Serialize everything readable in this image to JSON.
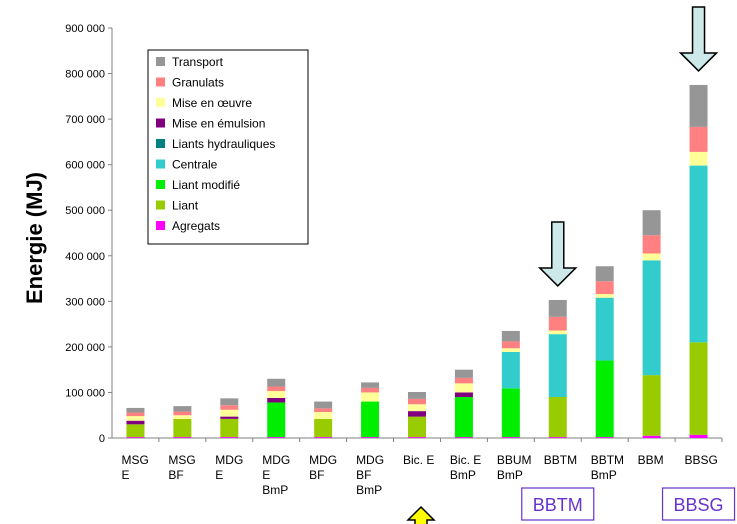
{
  "chart_data": {
    "type": "bar",
    "stacked": true,
    "ylabel": "Energie (MJ)",
    "ylim": [
      0,
      900000
    ],
    "yticks": [
      0,
      100000,
      200000,
      300000,
      400000,
      500000,
      600000,
      700000,
      800000,
      900000
    ],
    "ytick_labels": [
      "0",
      "100 000",
      "200 000",
      "300 000",
      "400 000",
      "500 000",
      "600 000",
      "700 000",
      "800 000",
      "900 000"
    ],
    "categories": [
      [
        "MSG",
        "E"
      ],
      [
        "MSG",
        "BF"
      ],
      [
        "MDG",
        "E"
      ],
      [
        "MDG",
        "E",
        "BmP"
      ],
      [
        "MDG",
        "BF"
      ],
      [
        "MDG",
        "BF",
        "BmP"
      ],
      [
        "Bic. E"
      ],
      [
        "Bic. E",
        "BmP"
      ],
      [
        "BBUM",
        "BmP"
      ],
      [
        "BBTM"
      ],
      [
        "BBTM",
        "BmP"
      ],
      [
        "BBM"
      ],
      [
        "BBSG"
      ]
    ],
    "series": [
      {
        "name": "Agregats",
        "color": "#ff00ff",
        "values": [
          2000,
          2000,
          2000,
          2000,
          2000,
          2000,
          2000,
          2000,
          2000,
          2000,
          2000,
          5000,
          7000
        ]
      },
      {
        "name": "Liant",
        "color": "#99cc00",
        "values": [
          28000,
          40000,
          40000,
          0,
          40000,
          0,
          45000,
          0,
          0,
          88000,
          0,
          133000,
          203000
        ]
      },
      {
        "name": "Liant modifié",
        "color": "#00ee00",
        "values": [
          0,
          0,
          0,
          76000,
          0,
          78000,
          0,
          88000,
          107000,
          0,
          168000,
          0,
          0
        ]
      },
      {
        "name": "Centrale",
        "color": "#33cccc",
        "values": [
          0,
          0,
          0,
          0,
          0,
          0,
          0,
          0,
          80000,
          138000,
          138000,
          252000,
          388000
        ]
      },
      {
        "name": "Liants hydrauliques",
        "color": "#008080",
        "values": [
          0,
          0,
          0,
          0,
          0,
          0,
          0,
          0,
          0,
          0,
          0,
          0,
          0
        ]
      },
      {
        "name": "Mise en émulsion",
        "color": "#800080",
        "values": [
          8000,
          0,
          5000,
          10000,
          0,
          0,
          12000,
          10000,
          0,
          0,
          0,
          0,
          0
        ]
      },
      {
        "name": "Mise en œuvre",
        "color": "#ffff99",
        "values": [
          10000,
          8000,
          15000,
          15000,
          15000,
          20000,
          15000,
          20000,
          8000,
          8000,
          8000,
          15000,
          30000
        ]
      },
      {
        "name": "Granulats",
        "color": "#ff8080",
        "values": [
          8000,
          8000,
          10000,
          10000,
          8000,
          10000,
          12000,
          12000,
          15000,
          30000,
          28000,
          40000,
          55000
        ]
      },
      {
        "name": "Transport",
        "color": "#969696",
        "values": [
          10000,
          12000,
          15000,
          17000,
          15000,
          12000,
          15000,
          18000,
          23000,
          37000,
          33000,
          55000,
          92000
        ]
      }
    ],
    "legend_order": [
      "Transport",
      "Granulats",
      "Mise en œuvre",
      "Mise en émulsion",
      "Liants hydrauliques",
      "Centrale",
      "Liant modifié",
      "Liant",
      "Agregats"
    ],
    "legend_position": "top-left",
    "grid": false,
    "annotations": {
      "down_arrows_over": [
        "BBTM",
        "BBSG"
      ],
      "up_arrow_under": "Bic. E",
      "boxed_labels": [
        "BBTM",
        "BBSG"
      ]
    }
  }
}
